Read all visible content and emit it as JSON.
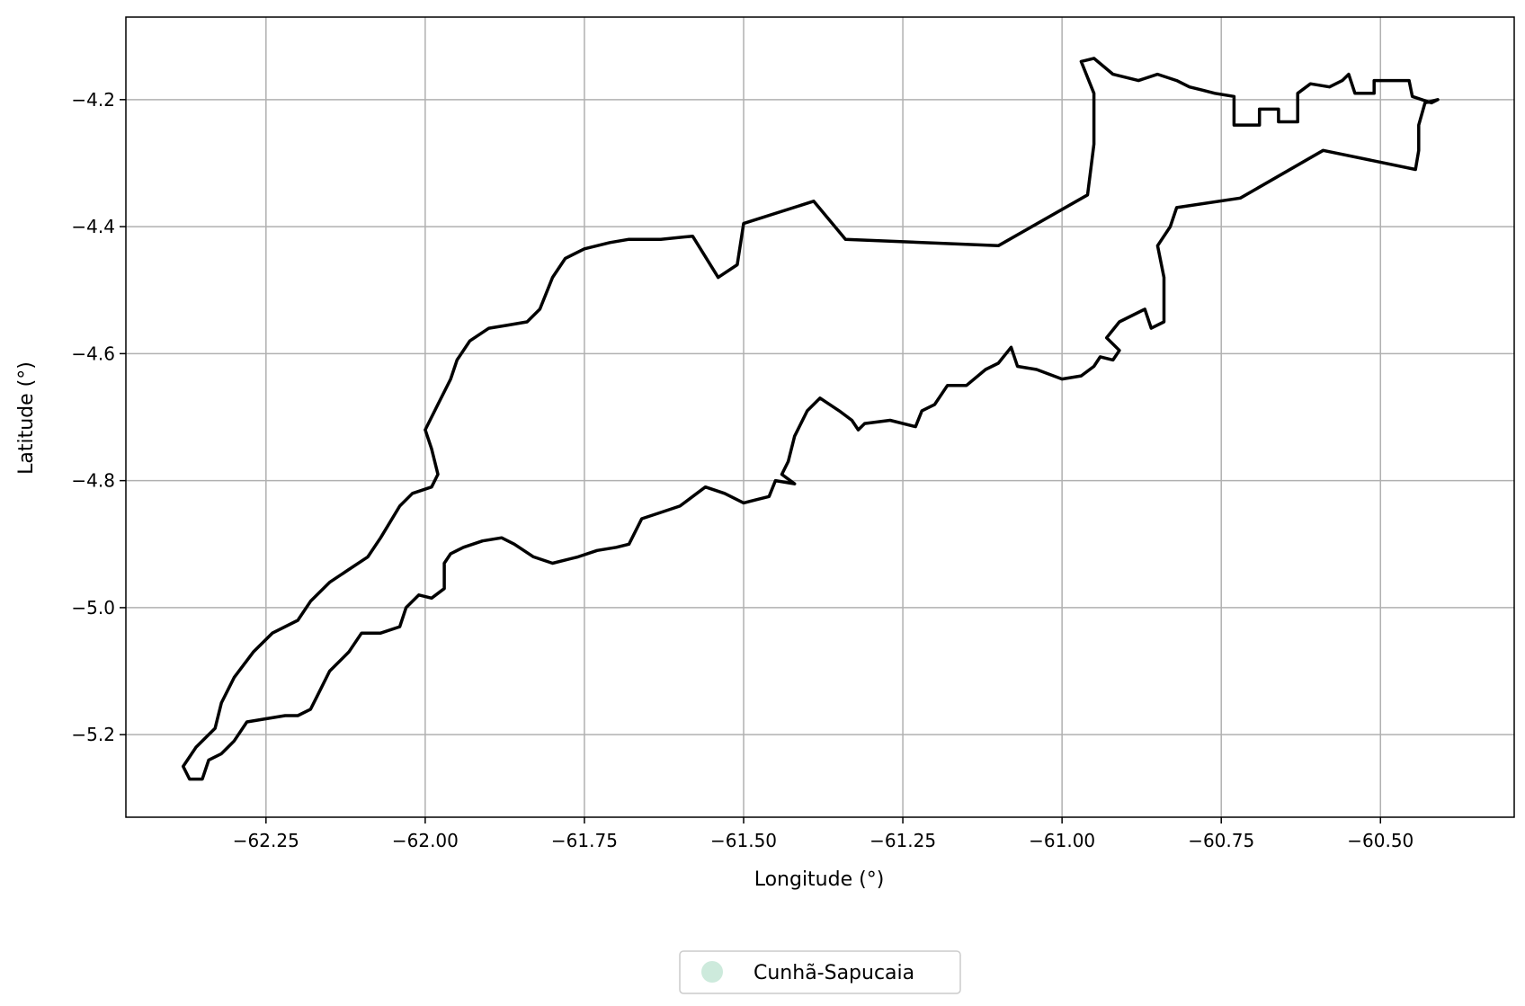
{
  "chart_data": {
    "type": "map",
    "xlabel": "Longitude (°)",
    "ylabel": "Latitude (°)",
    "xlim": [
      -62.47,
      -60.29
    ],
    "ylim": [
      -5.33,
      -4.07
    ],
    "x_ticks": [
      -62.25,
      -62.0,
      -61.75,
      -61.5,
      -61.25,
      -61.0,
      -60.75,
      -60.5
    ],
    "x_tick_labels": [
      "−62.25",
      "−62.00",
      "−61.75",
      "−61.50",
      "−61.25",
      "−61.00",
      "−60.75",
      "−60.50"
    ],
    "y_ticks": [
      -4.2,
      -4.4,
      -4.6,
      -4.8,
      -5.0,
      -5.2
    ],
    "y_tick_labels": [
      "−4.2",
      "−4.4",
      "−4.6",
      "−4.8",
      "−5.0",
      "−5.2"
    ],
    "grid": true,
    "legend_position": "bottom-center",
    "legend": [
      {
        "label": "Cunhã-Sapucaia",
        "color": "#cdeadc"
      }
    ],
    "boundary_color": "#000000",
    "boundary": [
      [
        -62.37,
        -5.27
      ],
      [
        -62.38,
        -5.25
      ],
      [
        -62.36,
        -5.22
      ],
      [
        -62.33,
        -5.19
      ],
      [
        -62.32,
        -5.15
      ],
      [
        -62.3,
        -5.11
      ],
      [
        -62.27,
        -5.07
      ],
      [
        -62.24,
        -5.04
      ],
      [
        -62.2,
        -5.02
      ],
      [
        -62.18,
        -4.99
      ],
      [
        -62.15,
        -4.96
      ],
      [
        -62.12,
        -4.94
      ],
      [
        -62.09,
        -4.92
      ],
      [
        -62.07,
        -4.89
      ],
      [
        -62.04,
        -4.84
      ],
      [
        -62.02,
        -4.82
      ],
      [
        -61.99,
        -4.81
      ],
      [
        -61.98,
        -4.79
      ],
      [
        -61.99,
        -4.75
      ],
      [
        -62.0,
        -4.72
      ],
      [
        -61.98,
        -4.68
      ],
      [
        -61.96,
        -4.64
      ],
      [
        -61.95,
        -4.61
      ],
      [
        -61.93,
        -4.58
      ],
      [
        -61.9,
        -4.56
      ],
      [
        -61.87,
        -4.555
      ],
      [
        -61.84,
        -4.55
      ],
      [
        -61.82,
        -4.53
      ],
      [
        -61.8,
        -4.48
      ],
      [
        -61.78,
        -4.45
      ],
      [
        -61.75,
        -4.435
      ],
      [
        -61.71,
        -4.425
      ],
      [
        -61.68,
        -4.42
      ],
      [
        -61.63,
        -4.42
      ],
      [
        -61.58,
        -4.415
      ],
      [
        -61.54,
        -4.48
      ],
      [
        -61.51,
        -4.46
      ],
      [
        -61.5,
        -4.395
      ],
      [
        -61.39,
        -4.36
      ],
      [
        -61.34,
        -4.42
      ],
      [
        -61.1,
        -4.43
      ],
      [
        -60.96,
        -4.35
      ],
      [
        -60.95,
        -4.27
      ],
      [
        -60.95,
        -4.19
      ],
      [
        -60.97,
        -4.14
      ],
      [
        -60.95,
        -4.135
      ],
      [
        -60.92,
        -4.16
      ],
      [
        -60.88,
        -4.17
      ],
      [
        -60.85,
        -4.16
      ],
      [
        -60.82,
        -4.17
      ],
      [
        -60.8,
        -4.18
      ],
      [
        -60.78,
        -4.185
      ],
      [
        -60.76,
        -4.19
      ],
      [
        -60.73,
        -4.195
      ],
      [
        -60.73,
        -4.24
      ],
      [
        -60.69,
        -4.24
      ],
      [
        -60.69,
        -4.215
      ],
      [
        -60.66,
        -4.215
      ],
      [
        -60.66,
        -4.235
      ],
      [
        -60.63,
        -4.235
      ],
      [
        -60.63,
        -4.19
      ],
      [
        -60.61,
        -4.175
      ],
      [
        -60.58,
        -4.18
      ],
      [
        -60.56,
        -4.17
      ],
      [
        -60.55,
        -4.16
      ],
      [
        -60.54,
        -4.19
      ],
      [
        -60.51,
        -4.19
      ],
      [
        -60.51,
        -4.17
      ],
      [
        -60.455,
        -4.17
      ],
      [
        -60.45,
        -4.195
      ],
      [
        -60.42,
        -4.205
      ],
      [
        -60.41,
        -4.2
      ],
      [
        -60.43,
        -4.205
      ],
      [
        -60.44,
        -4.24
      ],
      [
        -60.44,
        -4.28
      ],
      [
        -60.445,
        -4.31
      ],
      [
        -60.59,
        -4.28
      ],
      [
        -60.72,
        -4.355
      ],
      [
        -60.82,
        -4.37
      ],
      [
        -60.83,
        -4.4
      ],
      [
        -60.85,
        -4.43
      ],
      [
        -60.84,
        -4.48
      ],
      [
        -60.84,
        -4.52
      ],
      [
        -60.84,
        -4.55
      ],
      [
        -60.86,
        -4.56
      ],
      [
        -60.87,
        -4.53
      ],
      [
        -60.91,
        -4.55
      ],
      [
        -60.93,
        -4.575
      ],
      [
        -60.91,
        -4.595
      ],
      [
        -60.92,
        -4.61
      ],
      [
        -60.94,
        -4.605
      ],
      [
        -60.95,
        -4.62
      ],
      [
        -60.97,
        -4.635
      ],
      [
        -61.0,
        -4.64
      ],
      [
        -61.04,
        -4.625
      ],
      [
        -61.07,
        -4.62
      ],
      [
        -61.08,
        -4.59
      ],
      [
        -61.1,
        -4.615
      ],
      [
        -61.12,
        -4.625
      ],
      [
        -61.15,
        -4.65
      ],
      [
        -61.18,
        -4.65
      ],
      [
        -61.2,
        -4.68
      ],
      [
        -61.22,
        -4.69
      ],
      [
        -61.23,
        -4.715
      ],
      [
        -61.27,
        -4.705
      ],
      [
        -61.31,
        -4.71
      ],
      [
        -61.32,
        -4.72
      ],
      [
        -61.33,
        -4.705
      ],
      [
        -61.35,
        -4.69
      ],
      [
        -61.38,
        -4.67
      ],
      [
        -61.4,
        -4.69
      ],
      [
        -61.42,
        -4.73
      ],
      [
        -61.43,
        -4.77
      ],
      [
        -61.44,
        -4.79
      ],
      [
        -61.42,
        -4.805
      ],
      [
        -61.45,
        -4.8
      ],
      [
        -61.46,
        -4.825
      ],
      [
        -61.48,
        -4.83
      ],
      [
        -61.5,
        -4.835
      ],
      [
        -61.53,
        -4.82
      ],
      [
        -61.56,
        -4.81
      ],
      [
        -61.58,
        -4.825
      ],
      [
        -61.6,
        -4.84
      ],
      [
        -61.63,
        -4.85
      ],
      [
        -61.66,
        -4.86
      ],
      [
        -61.68,
        -4.9
      ],
      [
        -61.7,
        -4.905
      ],
      [
        -61.73,
        -4.91
      ],
      [
        -61.76,
        -4.92
      ],
      [
        -61.8,
        -4.93
      ],
      [
        -61.83,
        -4.92
      ],
      [
        -61.86,
        -4.9
      ],
      [
        -61.88,
        -4.89
      ],
      [
        -61.91,
        -4.895
      ],
      [
        -61.94,
        -4.905
      ],
      [
        -61.96,
        -4.915
      ],
      [
        -61.97,
        -4.93
      ],
      [
        -61.97,
        -4.97
      ],
      [
        -61.99,
        -4.985
      ],
      [
        -62.01,
        -4.98
      ],
      [
        -62.03,
        -5.0
      ],
      [
        -62.04,
        -5.03
      ],
      [
        -62.07,
        -5.04
      ],
      [
        -62.1,
        -5.04
      ],
      [
        -62.12,
        -5.07
      ],
      [
        -62.15,
        -5.1
      ],
      [
        -62.17,
        -5.14
      ],
      [
        -62.18,
        -5.16
      ],
      [
        -62.2,
        -5.17
      ],
      [
        -62.22,
        -5.17
      ],
      [
        -62.25,
        -5.175
      ],
      [
        -62.28,
        -5.18
      ],
      [
        -62.3,
        -5.21
      ],
      [
        -62.32,
        -5.23
      ],
      [
        -62.34,
        -5.24
      ],
      [
        -62.35,
        -5.27
      ],
      [
        -62.37,
        -5.27
      ]
    ]
  }
}
